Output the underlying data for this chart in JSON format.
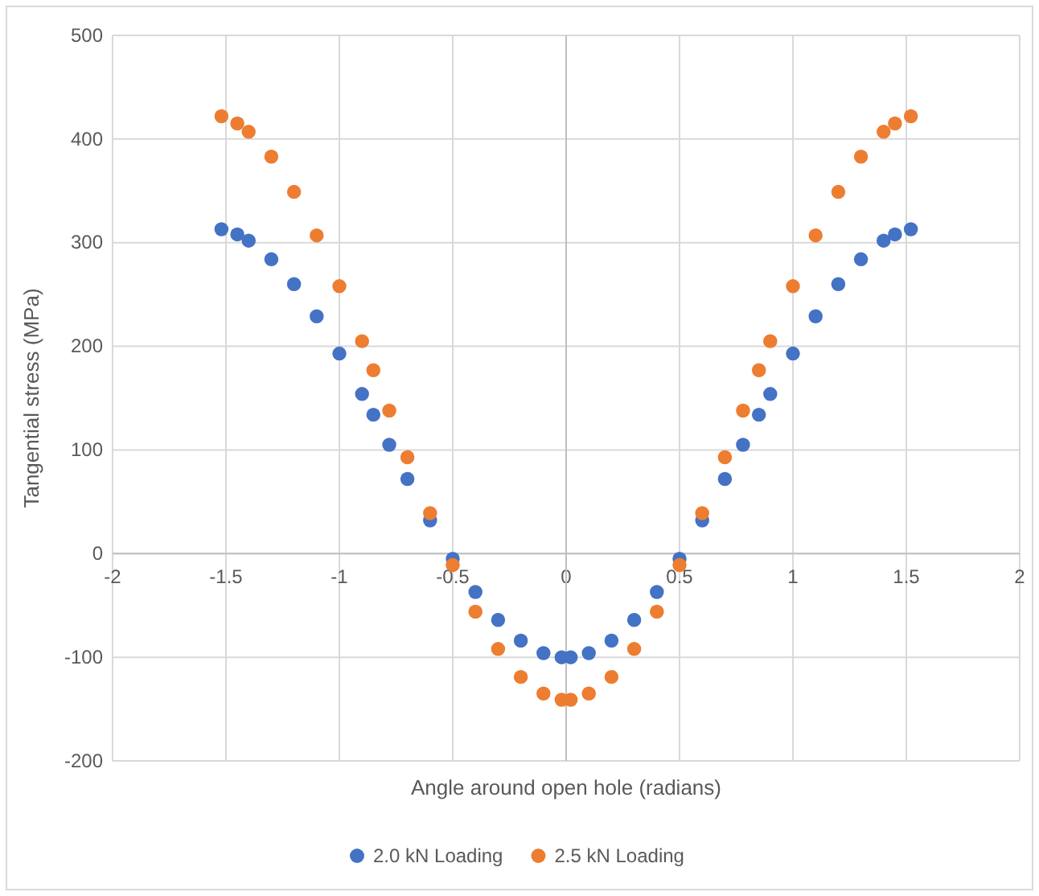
{
  "chart_data": {
    "type": "scatter",
    "xlabel": "Angle around open hole (radians)",
    "ylabel": "Tangential stress (MPa)",
    "xlim": [
      -2,
      2
    ],
    "xticks": [
      -2,
      -1.5,
      -1,
      -0.5,
      0,
      0.5,
      1,
      1.5,
      2
    ],
    "ylim": [
      -200,
      500
    ],
    "yticks": [
      -200,
      -100,
      0,
      100,
      200,
      300,
      400,
      500
    ],
    "grid": true,
    "legend": "bottom",
    "marker": "circle",
    "x": [
      -1.52,
      -1.45,
      -1.4,
      -1.3,
      -1.2,
      -1.1,
      -1.0,
      -0.9,
      -0.85,
      -0.78,
      -0.7,
      -0.6,
      -0.5,
      -0.4,
      -0.3,
      -0.2,
      -0.1,
      -0.02,
      0.02,
      0.1,
      0.2,
      0.3,
      0.4,
      0.5,
      0.6,
      0.7,
      0.78,
      0.85,
      0.9,
      1.0,
      1.1,
      1.2,
      1.3,
      1.4,
      1.45,
      1.52
    ],
    "series": [
      {
        "name": "2.0 kN Loading",
        "color": "#4472c4",
        "values": [
          313,
          308,
          302,
          284,
          260,
          229,
          193,
          154,
          134,
          105,
          72,
          32,
          -5,
          -37,
          -64,
          -84,
          -96,
          -100,
          -100,
          -96,
          -84,
          -64,
          -37,
          -5,
          32,
          72,
          105,
          134,
          154,
          193,
          229,
          260,
          284,
          302,
          308,
          313
        ]
      },
      {
        "name": "2.5 kN Loading",
        "color": "#ed7d31",
        "values": [
          422,
          415,
          407,
          383,
          349,
          307,
          258,
          205,
          177,
          138,
          93,
          39,
          -11,
          -56,
          -92,
          -119,
          -135,
          -141,
          -141,
          -135,
          -119,
          -92,
          -56,
          -11,
          39,
          93,
          138,
          177,
          205,
          258,
          307,
          349,
          383,
          407,
          415,
          422
        ]
      }
    ]
  }
}
